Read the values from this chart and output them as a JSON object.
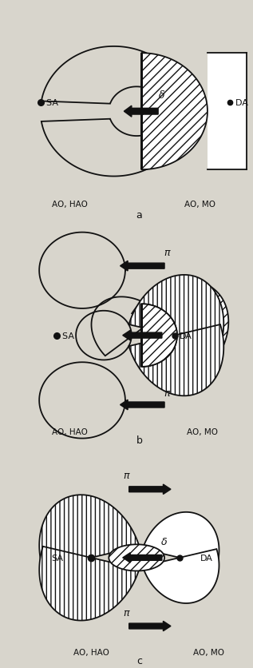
{
  "bg_color": "#d8d5cc",
  "line_color": "#111111",
  "fig_width": 3.17,
  "fig_height": 8.37,
  "dpi": 100,
  "panel_labels": [
    "a",
    "b",
    "c"
  ],
  "sa_label": "SA",
  "da_label": "DA",
  "ao_hao_label": "AO, HAO",
  "ao_mo_label": "AO, MO",
  "sigma_label": "δ",
  "pi_label": "π"
}
